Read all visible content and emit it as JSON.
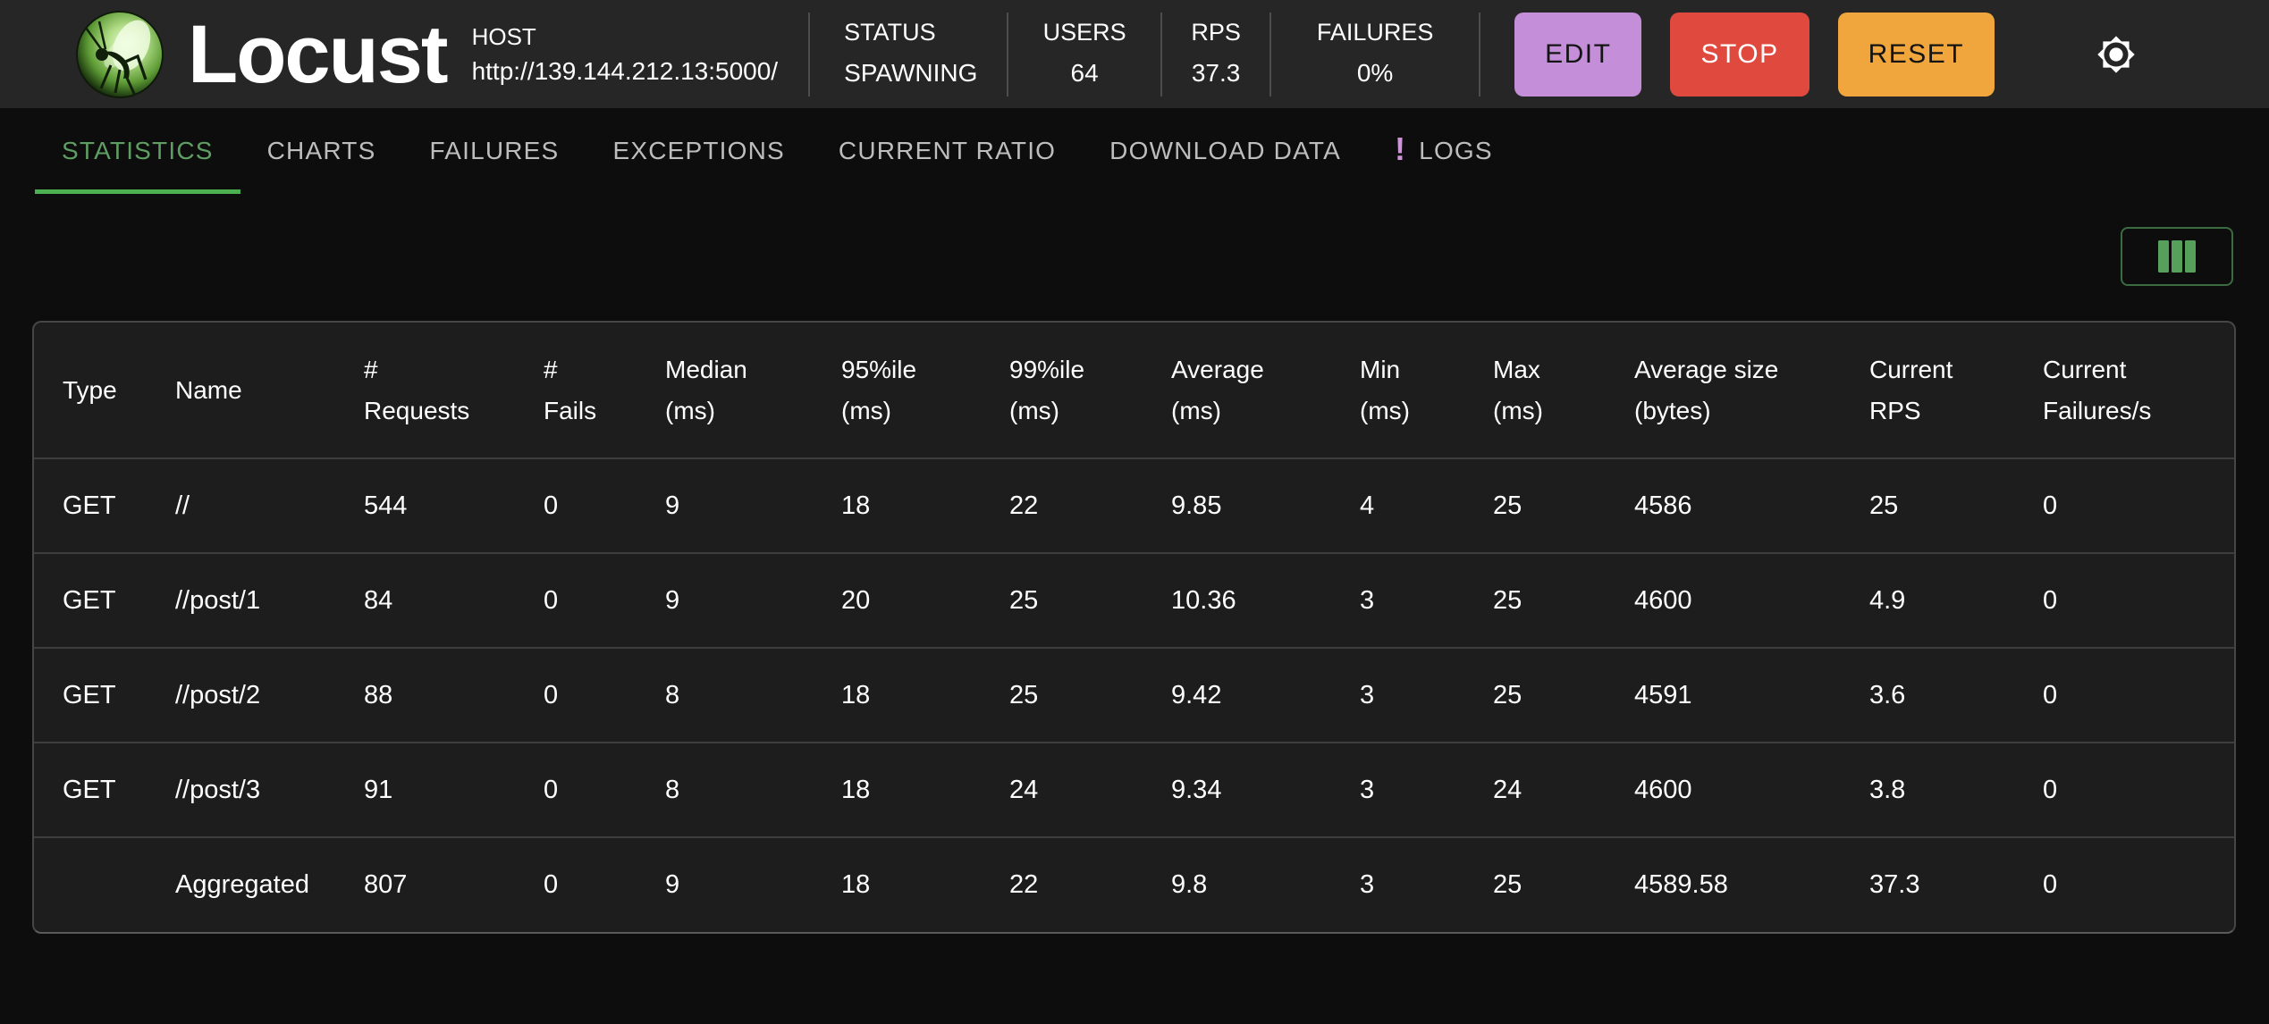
{
  "header": {
    "app_name": "Locust",
    "host_label": "HOST",
    "host_url": "http://139.144.212.13:5000/",
    "stats": [
      {
        "label": "STATUS",
        "value": "SPAWNING"
      },
      {
        "label": "USERS",
        "value": "64"
      },
      {
        "label": "RPS",
        "value": "37.3"
      },
      {
        "label": "FAILURES",
        "value": "0%"
      }
    ],
    "buttons": [
      {
        "label": "EDIT",
        "color": "#c48fd8",
        "text_color": "#141414"
      },
      {
        "label": "STOP",
        "color": "#e0493e",
        "text_color": "#ffffff"
      },
      {
        "label": "RESET",
        "color": "#f0a63d",
        "text_color": "#141414"
      }
    ]
  },
  "tabs": {
    "items": [
      {
        "label": "STATISTICS",
        "active": true
      },
      {
        "label": "CHARTS"
      },
      {
        "label": "FAILURES"
      },
      {
        "label": "EXCEPTIONS"
      },
      {
        "label": "CURRENT RATIO"
      },
      {
        "label": "DOWNLOAD DATA"
      },
      {
        "label": "LOGS",
        "badge": "!"
      }
    ],
    "active_color": "#5f9e63",
    "underline_color": "#4caf50",
    "badge_color": "#ce93d8"
  },
  "toolbar": {
    "column_icon_color": "#57a05b"
  },
  "table": {
    "columns": [
      {
        "l1": "Type",
        "l2": ""
      },
      {
        "l1": "Name",
        "l2": ""
      },
      {
        "l1": "#",
        "l2": "Requests"
      },
      {
        "l1": "#",
        "l2": "Fails"
      },
      {
        "l1": "Median",
        "l2": "(ms)"
      },
      {
        "l1": "95%ile",
        "l2": "(ms)"
      },
      {
        "l1": "99%ile",
        "l2": "(ms)"
      },
      {
        "l1": "Average",
        "l2": "(ms)"
      },
      {
        "l1": "Min",
        "l2": "(ms)"
      },
      {
        "l1": "Max",
        "l2": "(ms)"
      },
      {
        "l1": "Average size",
        "l2": "(bytes)"
      },
      {
        "l1": "Current",
        "l2": "RPS"
      },
      {
        "l1": "Current",
        "l2": "Failures/s"
      }
    ],
    "rows": [
      [
        "GET",
        "//",
        "544",
        "0",
        "9",
        "18",
        "22",
        "9.85",
        "4",
        "25",
        "4586",
        "25",
        "0"
      ],
      [
        "GET",
        "//post/1",
        "84",
        "0",
        "9",
        "20",
        "25",
        "10.36",
        "3",
        "25",
        "4600",
        "4.9",
        "0"
      ],
      [
        "GET",
        "//post/2",
        "88",
        "0",
        "8",
        "18",
        "25",
        "9.42",
        "3",
        "25",
        "4591",
        "3.6",
        "0"
      ],
      [
        "GET",
        "//post/3",
        "91",
        "0",
        "8",
        "18",
        "24",
        "9.34",
        "3",
        "24",
        "4600",
        "3.8",
        "0"
      ],
      [
        "",
        "Aggregated",
        "807",
        "0",
        "9",
        "18",
        "22",
        "9.8",
        "3",
        "25",
        "4589.58",
        "37.3",
        "0"
      ]
    ]
  }
}
